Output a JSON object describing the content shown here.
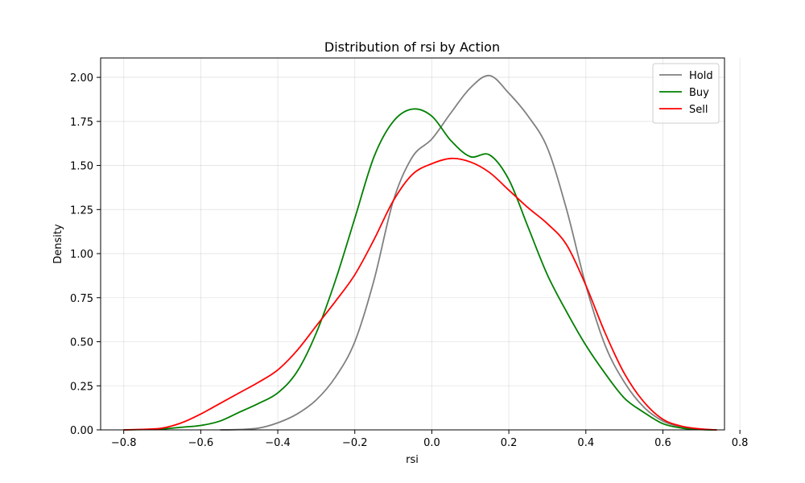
{
  "chart_data": {
    "type": "line",
    "title": "Distribution of rsi by Action",
    "xlabel": "rsi",
    "ylabel": "Density",
    "xlim": [
      -0.86,
      0.76
    ],
    "ylim": [
      0,
      2.11
    ],
    "xticks": [
      -0.8,
      -0.6,
      -0.4,
      -0.2,
      0.0,
      0.2,
      0.4,
      0.6,
      0.8
    ],
    "xtick_labels": [
      "−0.8",
      "−0.6",
      "−0.4",
      "−0.2",
      "0.0",
      "0.2",
      "0.4",
      "0.6",
      "0.8"
    ],
    "yticks": [
      0,
      0.25,
      0.5,
      0.75,
      1.0,
      1.25,
      1.5,
      1.75,
      2.0
    ],
    "ytick_labels": [
      "0.00",
      "0.25",
      "0.50",
      "0.75",
      "1.00",
      "1.25",
      "1.50",
      "1.75",
      "2.00"
    ],
    "grid": true,
    "legend": "top-right",
    "series": [
      {
        "name": "Hold",
        "color": "#808080",
        "points": [
          [
            -0.55,
            0.0
          ],
          [
            -0.5,
            0.002
          ],
          [
            -0.45,
            0.01
          ],
          [
            -0.4,
            0.04
          ],
          [
            -0.35,
            0.09
          ],
          [
            -0.3,
            0.17
          ],
          [
            -0.25,
            0.3
          ],
          [
            -0.2,
            0.5
          ],
          [
            -0.15,
            0.85
          ],
          [
            -0.1,
            1.3
          ],
          [
            -0.05,
            1.55
          ],
          [
            0.0,
            1.65
          ],
          [
            0.05,
            1.8
          ],
          [
            0.1,
            1.94
          ],
          [
            0.15,
            2.01
          ],
          [
            0.2,
            1.91
          ],
          [
            0.25,
            1.78
          ],
          [
            0.3,
            1.6
          ],
          [
            0.35,
            1.25
          ],
          [
            0.4,
            0.82
          ],
          [
            0.45,
            0.48
          ],
          [
            0.5,
            0.27
          ],
          [
            0.55,
            0.13
          ],
          [
            0.6,
            0.05
          ],
          [
            0.65,
            0.015
          ],
          [
            0.7,
            0.003
          ],
          [
            0.73,
            0.0
          ]
        ]
      },
      {
        "name": "Buy",
        "color": "#008000",
        "points": [
          [
            -0.8,
            0.0
          ],
          [
            -0.75,
            0.002
          ],
          [
            -0.7,
            0.005
          ],
          [
            -0.65,
            0.015
          ],
          [
            -0.6,
            0.025
          ],
          [
            -0.55,
            0.05
          ],
          [
            -0.5,
            0.1
          ],
          [
            -0.45,
            0.15
          ],
          [
            -0.4,
            0.21
          ],
          [
            -0.35,
            0.33
          ],
          [
            -0.3,
            0.55
          ],
          [
            -0.25,
            0.85
          ],
          [
            -0.2,
            1.2
          ],
          [
            -0.15,
            1.55
          ],
          [
            -0.1,
            1.75
          ],
          [
            -0.05,
            1.82
          ],
          [
            0.0,
            1.78
          ],
          [
            0.05,
            1.64
          ],
          [
            0.1,
            1.55
          ],
          [
            0.15,
            1.56
          ],
          [
            0.2,
            1.42
          ],
          [
            0.25,
            1.15
          ],
          [
            0.3,
            0.88
          ],
          [
            0.35,
            0.67
          ],
          [
            0.4,
            0.48
          ],
          [
            0.45,
            0.32
          ],
          [
            0.5,
            0.18
          ],
          [
            0.55,
            0.1
          ],
          [
            0.6,
            0.035
          ],
          [
            0.65,
            0.01
          ],
          [
            0.7,
            0.002
          ],
          [
            0.74,
            0.0
          ]
        ]
      },
      {
        "name": "Sell",
        "color": "#ff0000",
        "points": [
          [
            -0.8,
            0.0
          ],
          [
            -0.75,
            0.003
          ],
          [
            -0.7,
            0.01
          ],
          [
            -0.65,
            0.04
          ],
          [
            -0.6,
            0.09
          ],
          [
            -0.55,
            0.15
          ],
          [
            -0.5,
            0.21
          ],
          [
            -0.45,
            0.27
          ],
          [
            -0.4,
            0.34
          ],
          [
            -0.35,
            0.45
          ],
          [
            -0.3,
            0.59
          ],
          [
            -0.25,
            0.73
          ],
          [
            -0.2,
            0.88
          ],
          [
            -0.15,
            1.08
          ],
          [
            -0.1,
            1.3
          ],
          [
            -0.05,
            1.45
          ],
          [
            0.0,
            1.51
          ],
          [
            0.05,
            1.54
          ],
          [
            0.1,
            1.52
          ],
          [
            0.15,
            1.46
          ],
          [
            0.2,
            1.36
          ],
          [
            0.25,
            1.26
          ],
          [
            0.3,
            1.17
          ],
          [
            0.35,
            1.05
          ],
          [
            0.4,
            0.82
          ],
          [
            0.45,
            0.55
          ],
          [
            0.5,
            0.32
          ],
          [
            0.55,
            0.16
          ],
          [
            0.6,
            0.06
          ],
          [
            0.65,
            0.02
          ],
          [
            0.7,
            0.005
          ],
          [
            0.74,
            0.0
          ]
        ]
      }
    ]
  }
}
